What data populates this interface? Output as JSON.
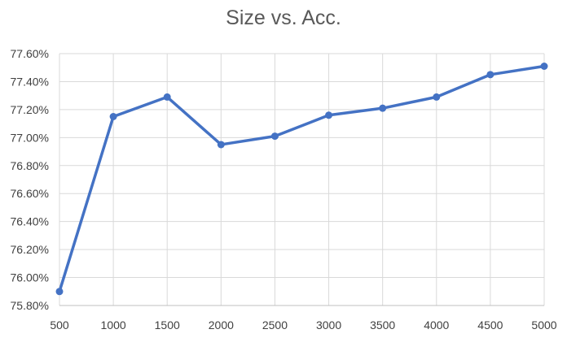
{
  "chart_data": {
    "type": "line",
    "title": "Size vs. Acc.",
    "xlabel": "",
    "ylabel": "",
    "x": [
      500,
      1000,
      1500,
      2000,
      2500,
      3000,
      3500,
      4000,
      4500,
      5000
    ],
    "x_tick_labels": [
      "500",
      "1000",
      "1500",
      "2000",
      "2500",
      "3000",
      "3500",
      "4000",
      "4500",
      "5000"
    ],
    "series": [
      {
        "values": [
          75.9,
          77.15,
          77.29,
          76.95,
          77.01,
          77.16,
          77.21,
          77.29,
          77.45,
          77.51
        ],
        "color": "#4472C4"
      }
    ],
    "y_ticks": [
      75.8,
      76.0,
      76.2,
      76.4,
      76.6,
      76.8,
      77.0,
      77.2,
      77.4,
      77.6
    ],
    "y_tick_labels": [
      "75.80%",
      "76.00%",
      "76.20%",
      "76.40%",
      "76.60%",
      "76.80%",
      "77.00%",
      "77.20%",
      "77.40%",
      "77.60%"
    ],
    "ylim": [
      75.8,
      77.6
    ],
    "xlim": [
      500,
      5000
    ],
    "grid": "both",
    "legend": "none",
    "colors": {
      "line": "#4472C4",
      "grid": "#d9d9d9",
      "axis": "#bfbfbf",
      "tick_text": "#404040",
      "title_text": "#595959"
    }
  }
}
